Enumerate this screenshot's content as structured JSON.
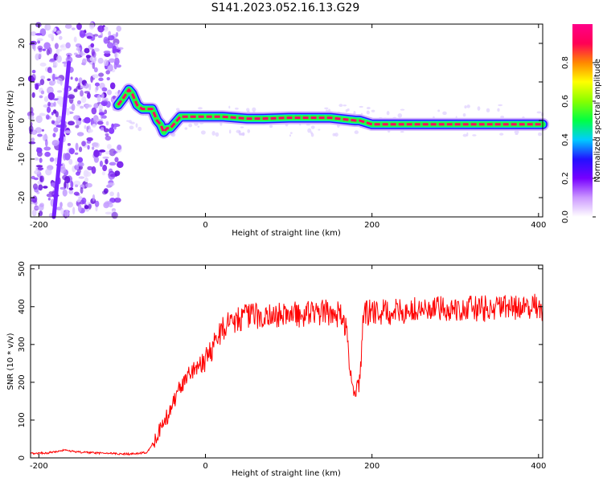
{
  "figure": {
    "title": "S141.2023.052.16.13.G29"
  },
  "chart_data": [
    {
      "type": "heatmap",
      "panel": "top",
      "xlabel": "Height of straight line (km)",
      "ylabel": "Frequency (Hz)",
      "xlim": [
        -210,
        405
      ],
      "ylim": [
        -25,
        25
      ],
      "x_ticks": [
        -200,
        0,
        200,
        400
      ],
      "y_ticks": [
        -20,
        -10,
        0,
        10,
        20
      ],
      "colorbar": {
        "label": "Normalized spectral amplitude",
        "range": [
          0,
          1
        ],
        "ticks": [
          0,
          0.2,
          0.4,
          0.6,
          0.8
        ],
        "colors": [
          "#ffffff",
          "#cc99ff",
          "#7700ff",
          "#2211ff",
          "#00ccff",
          "#00ff44",
          "#88ff00",
          "#ffff00",
          "#ff8800",
          "#ff0055",
          "#ff0088"
        ]
      },
      "noise_region_x": [
        -210,
        -102
      ],
      "noise_streak": {
        "x_start": -182,
        "x_end": -164,
        "y_start": -25,
        "y_end": 15
      },
      "ridge_center": {
        "x": [
          -105,
          -98,
          -92,
          -88,
          -82,
          -76,
          -70,
          -64,
          -58,
          -54,
          -50,
          -46,
          -42,
          -38,
          -34,
          -30,
          -26,
          -20,
          -10,
          0,
          20,
          50,
          70,
          100,
          150,
          180,
          185,
          200,
          250,
          300,
          350,
          405
        ],
        "y": [
          4,
          6,
          8,
          7,
          4,
          3,
          3,
          3,
          0,
          -1,
          -3,
          -2,
          -2,
          -1,
          0,
          1,
          1,
          1,
          1,
          1,
          1,
          0.5,
          0.5,
          0.7,
          0.7,
          0,
          0,
          -1,
          -1,
          -1,
          -1,
          -1
        ]
      }
    },
    {
      "type": "line",
      "panel": "bottom",
      "xlabel": "Height of straight line (km)",
      "ylabel": "SNR (10 * v/v)",
      "xlim": [
        -210,
        405
      ],
      "ylim": [
        0,
        510
      ],
      "x_ticks": [
        -200,
        0,
        200,
        400
      ],
      "y_ticks": [
        0,
        100,
        200,
        300,
        400,
        500
      ],
      "line_color": "#ff0000",
      "series": [
        {
          "x": [
            -210,
            -190,
            -170,
            -150,
            -120,
            -90,
            -80,
            -70,
            -60,
            -50,
            -40,
            -30,
            -20,
            -10,
            0,
            10,
            20,
            30,
            40,
            50,
            60,
            80,
            100,
            120,
            140,
            160,
            170,
            175,
            180,
            185,
            190,
            200,
            220,
            250,
            300,
            350,
            400,
            405
          ],
          "y": [
            12,
            13,
            20,
            15,
            12,
            10,
            12,
            15,
            50,
            90,
            140,
            190,
            220,
            240,
            260,
            300,
            340,
            360,
            370,
            375,
            375,
            375,
            380,
            380,
            385,
            380,
            350,
            200,
            170,
            200,
            380,
            385,
            385,
            390,
            395,
            395,
            400,
            395
          ]
        }
      ]
    }
  ]
}
